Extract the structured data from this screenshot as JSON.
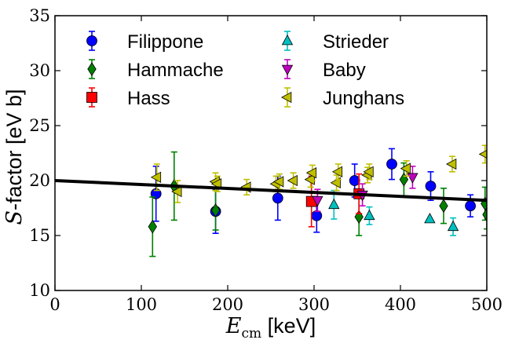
{
  "chart_data": {
    "type": "scatter",
    "xlabel": {
      "symbol": "E",
      "subscript": "cm",
      "unit": " [keV]"
    },
    "ylabel": {
      "symbol": "S",
      "rest": "-factor [eV b]"
    },
    "xlim": [
      0,
      500
    ],
    "ylim": [
      10,
      35
    ],
    "xticks": [
      0,
      100,
      200,
      300,
      400,
      500
    ],
    "yticks": [
      10,
      15,
      20,
      25,
      30,
      35
    ],
    "grid": false,
    "legend_position": "top",
    "fit_line": {
      "x": [
        0,
        500
      ],
      "y": [
        20.0,
        18.2
      ],
      "color": "#000000"
    },
    "series": [
      {
        "name": "Filippone",
        "marker": "circle",
        "color": "#0000ff",
        "errcolor": "#0000ff",
        "points": [
          {
            "x": 117,
            "y": 18.8,
            "e": 2.5
          },
          {
            "x": 186,
            "y": 17.2,
            "e": 2.0
          },
          {
            "x": 258,
            "y": 18.4,
            "e": 2.0
          },
          {
            "x": 303,
            "y": 16.8,
            "e": 1.5
          },
          {
            "x": 347,
            "y": 20.0,
            "e": 1.5
          },
          {
            "x": 390,
            "y": 21.5,
            "e": 1.4
          },
          {
            "x": 435,
            "y": 19.5,
            "e": 1.3
          },
          {
            "x": 481,
            "y": 17.7,
            "e": 1.0
          }
        ]
      },
      {
        "name": "Hammache",
        "marker": "diamond",
        "color": "#008000",
        "errcolor": "#008000",
        "points": [
          {
            "x": 113,
            "y": 15.8,
            "e": 2.7
          },
          {
            "x": 138,
            "y": 19.5,
            "e": 3.1
          },
          {
            "x": 186,
            "y": 17.3,
            "e": 1.8
          },
          {
            "x": 352,
            "y": 16.7,
            "e": 1.7
          },
          {
            "x": 404,
            "y": 20.1,
            "e": 1.5
          },
          {
            "x": 450,
            "y": 17.7,
            "e": 1.6
          },
          {
            "x": 498,
            "y": 17.9,
            "e": 1.5
          },
          {
            "x": 500,
            "y": 16.9,
            "e": 1.3
          }
        ]
      },
      {
        "name": "Hass",
        "marker": "square",
        "color": "#ff0000",
        "errcolor": "#ff0000",
        "points": [
          {
            "x": 297,
            "y": 18.1,
            "e": 2.3
          },
          {
            "x": 352,
            "y": 18.8,
            "e": 1.8
          }
        ]
      },
      {
        "name": "Strieder",
        "marker": "triangle-up",
        "color": "#00bfbf",
        "errcolor": "#00bfbf",
        "points": [
          {
            "x": 323,
            "y": 17.8,
            "e": 1.3
          },
          {
            "x": 364,
            "y": 16.8,
            "e": 0.8
          },
          {
            "x": 434,
            "y": 16.5,
            "e": 0.0
          },
          {
            "x": 461,
            "y": 15.8,
            "e": 0.8
          }
        ]
      },
      {
        "name": "Baby",
        "marker": "triangle-down",
        "color": "#bf00bf",
        "errcolor": "#bf00bf",
        "points": [
          {
            "x": 304,
            "y": 18.2,
            "e": 1.0
          },
          {
            "x": 356,
            "y": 18.7,
            "e": 1.0
          },
          {
            "x": 414,
            "y": 20.3,
            "e": 1.0
          }
        ]
      },
      {
        "name": "Junghans",
        "marker": "triangle-left",
        "color": "#bfbf00",
        "errcolor": "#bfbf00",
        "points": [
          {
            "x": 118,
            "y": 20.3,
            "e": 1.2
          },
          {
            "x": 142,
            "y": 19.0,
            "e": 1.0
          },
          {
            "x": 186,
            "y": 19.9,
            "e": 0.8
          },
          {
            "x": 188,
            "y": 19.7,
            "e": 0.7
          },
          {
            "x": 222,
            "y": 19.4,
            "e": 0.7
          },
          {
            "x": 256,
            "y": 19.7,
            "e": 0.7
          },
          {
            "x": 260,
            "y": 19.9,
            "e": 0.7
          },
          {
            "x": 276,
            "y": 20.0,
            "e": 0.7
          },
          {
            "x": 296,
            "y": 20.1,
            "e": 0.7
          },
          {
            "x": 298,
            "y": 20.7,
            "e": 0.7
          },
          {
            "x": 326,
            "y": 19.8,
            "e": 0.7
          },
          {
            "x": 328,
            "y": 20.8,
            "e": 0.7
          },
          {
            "x": 362,
            "y": 20.5,
            "e": 0.7
          },
          {
            "x": 364,
            "y": 20.8,
            "e": 0.7
          },
          {
            "x": 407,
            "y": 21.1,
            "e": 0.7
          },
          {
            "x": 460,
            "y": 21.5,
            "e": 0.7
          },
          {
            "x": 498,
            "y": 22.4,
            "e": 0.8
          }
        ]
      }
    ]
  }
}
